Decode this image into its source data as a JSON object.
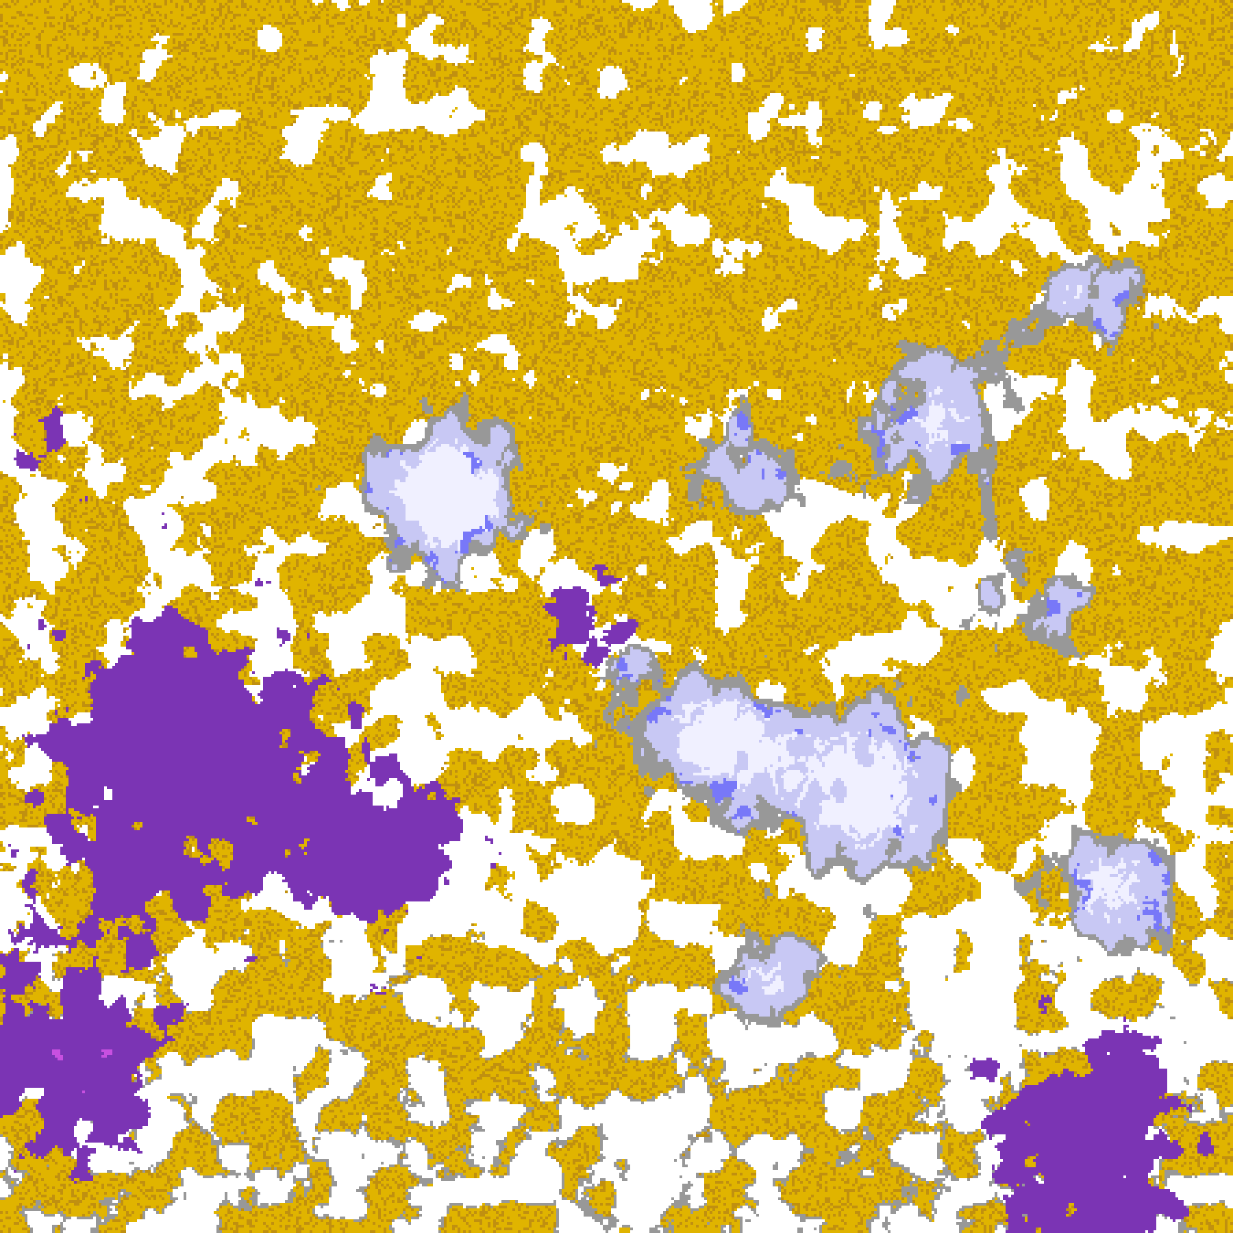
{
  "image": {
    "kind": "enhanced satellite cloud-top imagery",
    "palette": {
      "clear": "#ffffff",
      "low_cloud_gold": "#e0b400",
      "low_cloud_dark_gold": "#c09010",
      "high_purple": "#7b34b4",
      "magenta": "#c850e0",
      "periwinkle": "#7878f8",
      "gray": "#989898",
      "light_lavender": "#c8c8f4",
      "cold_top_white": "#f0f0ff",
      "boundary_lines": "#a0a0a0"
    }
  }
}
